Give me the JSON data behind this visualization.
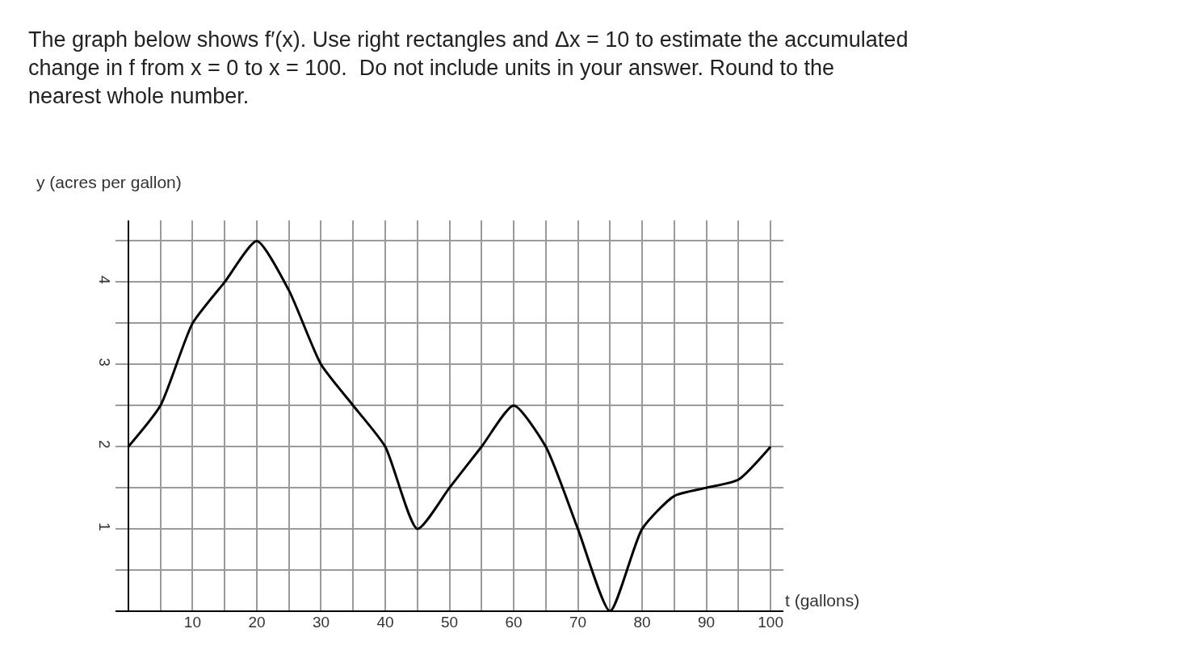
{
  "chart_data": {
    "type": "line",
    "title": "The graph below shows f′(x). Use right rectangles and Δx = 10 to estimate the accumulated change in f from x = 0 to x = 100.  Do not include units in your answer. Round to the nearest whole number.",
    "xlabel": "t (gallons)",
    "ylabel": "y (acres per gallon)",
    "x": [
      0,
      5,
      10,
      15,
      20,
      25,
      30,
      35,
      40,
      45,
      50,
      55,
      60,
      65,
      70,
      75,
      80,
      85,
      90,
      95,
      100
    ],
    "series": [
      {
        "color": "#000000",
        "values": [
          2,
          2.5,
          3.5,
          4,
          4.5,
          3.9,
          3,
          2.5,
          2,
          1,
          1.5,
          2,
          2.5,
          2,
          1,
          0,
          1,
          1.4,
          1.5,
          1.6,
          2
        ]
      }
    ],
    "xlim": [
      -2,
      102
    ],
    "ylim": [
      0,
      4.75
    ],
    "xticks": [
      {
        "value": 0,
        "label": null
      },
      {
        "value": 5,
        "label": null
      },
      10,
      {
        "value": 15,
        "label": null
      },
      20,
      {
        "value": 25,
        "label": null
      },
      30,
      {
        "value": 35,
        "label": null
      },
      40,
      {
        "value": 45,
        "label": null
      },
      50,
      {
        "value": 55,
        "label": null
      },
      60,
      {
        "value": 65,
        "label": null
      },
      70,
      {
        "value": 75,
        "label": null
      },
      80,
      {
        "value": 85,
        "label": null
      },
      90,
      {
        "value": 95,
        "label": null
      },
      100
    ],
    "yticks": [
      {
        "value": 0,
        "label": null
      },
      {
        "value": 0.5,
        "label": null
      },
      1,
      {
        "value": 1.5,
        "label": null
      },
      2,
      {
        "value": 2.5,
        "label": null
      },
      3,
      {
        "value": 3.5,
        "label": null
      },
      4,
      {
        "value": 4.5,
        "label": null
      }
    ],
    "grid": true,
    "legend": false,
    "marker": "none",
    "line_style": "solid"
  }
}
